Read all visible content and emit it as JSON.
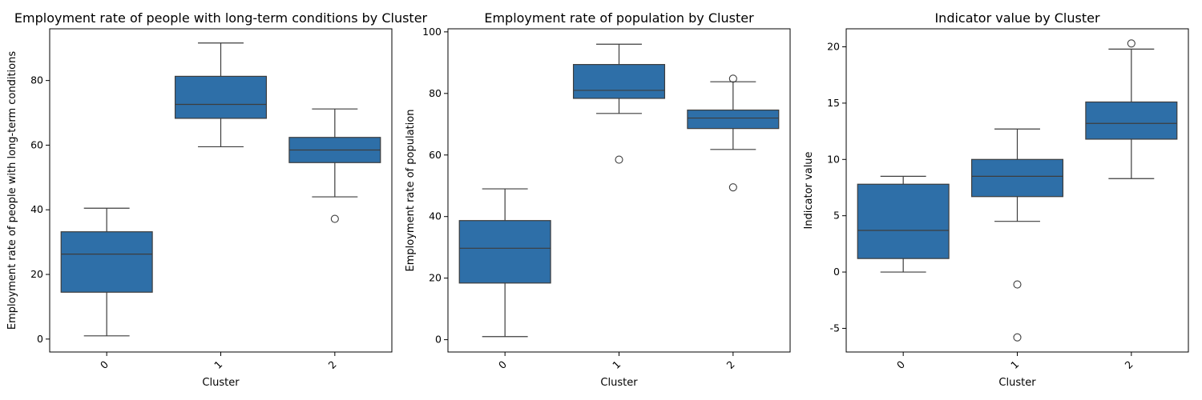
{
  "chart_data": [
    {
      "type": "box",
      "title": "Employment rate of people with long-term conditions by Cluster",
      "xlabel": "Cluster",
      "ylabel": "Employment rate of people with long-term conditions",
      "categories": [
        "0",
        "1",
        "2"
      ],
      "ylim": [
        -4,
        96
      ],
      "yticks": [
        0,
        20,
        40,
        60,
        80
      ],
      "boxes": [
        {
          "whisker_low": 1.0,
          "q1": 14.5,
          "median": 26.3,
          "q3": 33.2,
          "whisker_high": 40.5,
          "outliers": []
        },
        {
          "whisker_low": 59.5,
          "q1": 68.3,
          "median": 72.6,
          "q3": 81.3,
          "whisker_high": 91.6,
          "outliers": []
        },
        {
          "whisker_low": 44.0,
          "q1": 54.6,
          "median": 58.5,
          "q3": 62.4,
          "whisker_high": 71.2,
          "outliers": [
            37.2
          ]
        }
      ],
      "color": "#2e6fa8"
    },
    {
      "type": "box",
      "title": "Employment rate of population by Cluster",
      "xlabel": "Cluster",
      "ylabel": "Employment rate of population",
      "categories": [
        "0",
        "1",
        "2"
      ],
      "ylim": [
        -4,
        101
      ],
      "yticks": [
        0,
        20,
        40,
        60,
        80,
        100
      ],
      "boxes": [
        {
          "whisker_low": 1.0,
          "q1": 18.4,
          "median": 29.7,
          "q3": 38.7,
          "whisker_high": 49.0,
          "outliers": []
        },
        {
          "whisker_low": 73.5,
          "q1": 78.4,
          "median": 81.0,
          "q3": 89.4,
          "whisker_high": 96.0,
          "outliers": [
            58.5
          ]
        },
        {
          "whisker_low": 61.8,
          "q1": 68.6,
          "median": 72.0,
          "q3": 74.6,
          "whisker_high": 83.8,
          "outliers": [
            84.8,
            49.5
          ]
        }
      ],
      "color": "#2e6fa8"
    },
    {
      "type": "box",
      "title": "Indicator value by Cluster",
      "xlabel": "Cluster",
      "ylabel": "Indicator value",
      "categories": [
        "0",
        "1",
        "2"
      ],
      "ylim": [
        -7.1,
        21.6
      ],
      "yticks": [
        -5,
        0,
        5,
        10,
        15,
        20
      ],
      "boxes": [
        {
          "whisker_low": 0.0,
          "q1": 1.2,
          "median": 3.7,
          "q3": 7.8,
          "whisker_high": 8.5,
          "outliers": []
        },
        {
          "whisker_low": 4.5,
          "q1": 6.7,
          "median": 8.5,
          "q3": 10.0,
          "whisker_high": 12.7,
          "outliers": [
            -1.1,
            -5.8
          ]
        },
        {
          "whisker_low": 8.3,
          "q1": 11.8,
          "median": 13.2,
          "q3": 15.1,
          "whisker_high": 19.8,
          "outliers": [
            20.3
          ]
        }
      ],
      "color": "#2e6fa8"
    }
  ]
}
